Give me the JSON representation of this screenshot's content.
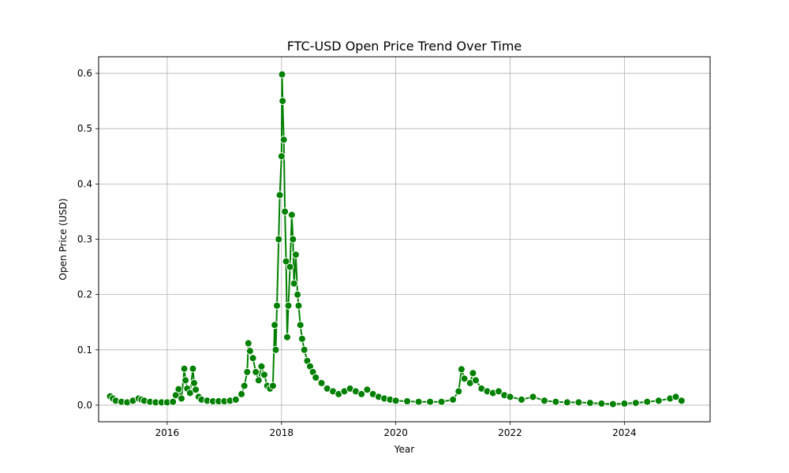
{
  "chart_data": {
    "type": "line",
    "title": "FTC-USD Open Price Trend Over Time",
    "xlabel": "Year",
    "ylabel": "Open Price (USD)",
    "xlim": [
      2014.8,
      2025.5
    ],
    "ylim": [
      -0.03,
      0.63
    ],
    "x_ticks": [
      2016,
      2018,
      2020,
      2022,
      2024
    ],
    "y_ticks": [
      0.0,
      0.1,
      0.2,
      0.3,
      0.4,
      0.5,
      0.6
    ],
    "y_tick_labels": [
      "0.0",
      "0.1",
      "0.2",
      "0.3",
      "0.4",
      "0.5",
      "0.6"
    ],
    "grid": true,
    "line_color": "#008000",
    "marker": "circle",
    "marker_edge_color": "#ffffff",
    "series": [
      {
        "x": [
          2015.0,
          2015.05,
          2015.1,
          2015.2,
          2015.3,
          2015.4,
          2015.5,
          2015.55,
          2015.6,
          2015.7,
          2015.8,
          2015.9,
          2016.0,
          2016.1,
          2016.15,
          2016.2,
          2016.25,
          2016.3,
          2016.32,
          2016.35,
          2016.4,
          2016.45,
          2016.47,
          2016.5,
          2016.55,
          2016.6,
          2016.7,
          2016.8,
          2016.9,
          2017.0,
          2017.1,
          2017.2,
          2017.3,
          2017.35,
          2017.4,
          2017.42,
          2017.45,
          2017.5,
          2017.55,
          2017.6,
          2017.65,
          2017.7,
          2017.75,
          2017.8,
          2017.85,
          2017.88,
          2017.9,
          2017.92,
          2017.95,
          2017.97,
          2018.0,
          2018.01,
          2018.02,
          2018.04,
          2018.06,
          2018.08,
          2018.1,
          2018.12,
          2018.15,
          2018.18,
          2018.2,
          2018.22,
          2018.25,
          2018.28,
          2018.3,
          2018.33,
          2018.36,
          2018.4,
          2018.45,
          2018.5,
          2018.55,
          2018.6,
          2018.7,
          2018.8,
          2018.9,
          2019.0,
          2019.1,
          2019.2,
          2019.3,
          2019.4,
          2019.5,
          2019.6,
          2019.7,
          2019.8,
          2019.9,
          2020.0,
          2020.2,
          2020.4,
          2020.6,
          2020.8,
          2021.0,
          2021.1,
          2021.15,
          2021.2,
          2021.3,
          2021.35,
          2021.4,
          2021.5,
          2021.6,
          2021.7,
          2021.8,
          2021.9,
          2022.0,
          2022.2,
          2022.4,
          2022.6,
          2022.8,
          2023.0,
          2023.2,
          2023.4,
          2023.6,
          2023.8,
          2024.0,
          2024.2,
          2024.4,
          2024.6,
          2024.8,
          2024.9,
          2025.0
        ],
        "y": [
          0.016,
          0.012,
          0.008,
          0.006,
          0.005,
          0.008,
          0.012,
          0.01,
          0.008,
          0.006,
          0.005,
          0.005,
          0.005,
          0.006,
          0.018,
          0.029,
          0.012,
          0.066,
          0.045,
          0.03,
          0.022,
          0.066,
          0.04,
          0.028,
          0.015,
          0.01,
          0.008,
          0.007,
          0.007,
          0.007,
          0.008,
          0.01,
          0.02,
          0.035,
          0.06,
          0.112,
          0.098,
          0.085,
          0.06,
          0.045,
          0.07,
          0.055,
          0.035,
          0.03,
          0.035,
          0.145,
          0.1,
          0.18,
          0.3,
          0.38,
          0.45,
          0.598,
          0.55,
          0.48,
          0.35,
          0.26,
          0.123,
          0.18,
          0.25,
          0.344,
          0.3,
          0.22,
          0.272,
          0.2,
          0.18,
          0.145,
          0.12,
          0.1,
          0.08,
          0.07,
          0.06,
          0.05,
          0.04,
          0.03,
          0.025,
          0.02,
          0.025,
          0.03,
          0.025,
          0.02,
          0.028,
          0.02,
          0.015,
          0.012,
          0.01,
          0.008,
          0.007,
          0.006,
          0.006,
          0.006,
          0.01,
          0.025,
          0.065,
          0.048,
          0.04,
          0.058,
          0.045,
          0.03,
          0.025,
          0.022,
          0.025,
          0.018,
          0.015,
          0.01,
          0.015,
          0.008,
          0.006,
          0.005,
          0.005,
          0.004,
          0.003,
          0.002,
          0.003,
          0.004,
          0.006,
          0.008,
          0.012,
          0.015,
          0.008
        ]
      }
    ]
  }
}
